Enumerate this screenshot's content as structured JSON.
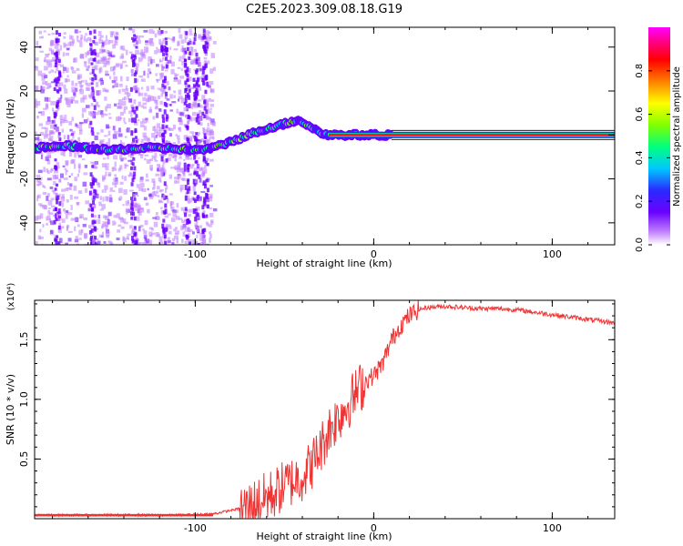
{
  "title": "C2E5.2023.309.08.18.G19",
  "chart_data": [
    {
      "type": "heatmap",
      "xlabel": "Height of straight line (km)",
      "ylabel": "Frequency (Hz)",
      "xlim": [
        -190,
        135
      ],
      "ylim": [
        -50,
        49
      ],
      "xticks": [
        -100,
        0,
        100
      ],
      "yticks": [
        -40,
        -20,
        0,
        20,
        40
      ],
      "colorbar": {
        "label": "Normalized spectral amplitude",
        "range": [
          0,
          1
        ],
        "ticks": [
          0.0,
          0.2,
          0.4,
          0.6,
          0.8
        ],
        "colors": [
          "#ffffff",
          "#c080ff",
          "#6a00ff",
          "#2a2aff",
          "#00c8ff",
          "#00ff80",
          "#80ff00",
          "#ffff00",
          "#ff8000",
          "#ff0000",
          "#ff0080",
          "#ff00ff"
        ]
      },
      "ridge": {
        "x": [
          -190,
          -170,
          -150,
          -130,
          -115,
          -100,
          -90,
          -80,
          -70,
          -60,
          -50,
          -42,
          -36,
          -30,
          -25,
          -20,
          -10,
          0,
          10,
          135
        ],
        "y": [
          -6,
          -5,
          -7,
          -6,
          -6,
          -7,
          -6,
          -3,
          0,
          3,
          5,
          7,
          4,
          1,
          0,
          0,
          0,
          0,
          0,
          0
        ]
      },
      "grid": false
    },
    {
      "type": "line",
      "xlabel": "Height of straight line (km)",
      "ylabel": "SNR (10 * v/v)",
      "yscale_label": "(x10⁴)",
      "xlim": [
        -190,
        135
      ],
      "ylim": [
        0,
        1.83
      ],
      "xticks": [
        -100,
        0,
        100
      ],
      "yticks": [
        0.5,
        1.0,
        1.5
      ],
      "color": "#ee3333",
      "x": [
        -190,
        -150,
        -110,
        -90,
        -80,
        -70,
        -60,
        -55,
        -50,
        -45,
        -40,
        -35,
        -30,
        -25,
        -20,
        -15,
        -10,
        -5,
        0,
        5,
        10,
        15,
        20,
        25,
        30,
        40,
        50,
        60,
        70,
        80,
        90,
        100,
        110,
        120,
        130,
        135
      ],
      "y": [
        0.03,
        0.03,
        0.03,
        0.04,
        0.07,
        0.1,
        0.18,
        0.22,
        0.28,
        0.32,
        0.36,
        0.45,
        0.58,
        0.75,
        0.85,
        0.95,
        1.05,
        1.15,
        1.2,
        1.3,
        1.5,
        1.62,
        1.7,
        1.75,
        1.77,
        1.78,
        1.77,
        1.76,
        1.76,
        1.75,
        1.73,
        1.71,
        1.69,
        1.67,
        1.65,
        1.64
      ]
    }
  ]
}
